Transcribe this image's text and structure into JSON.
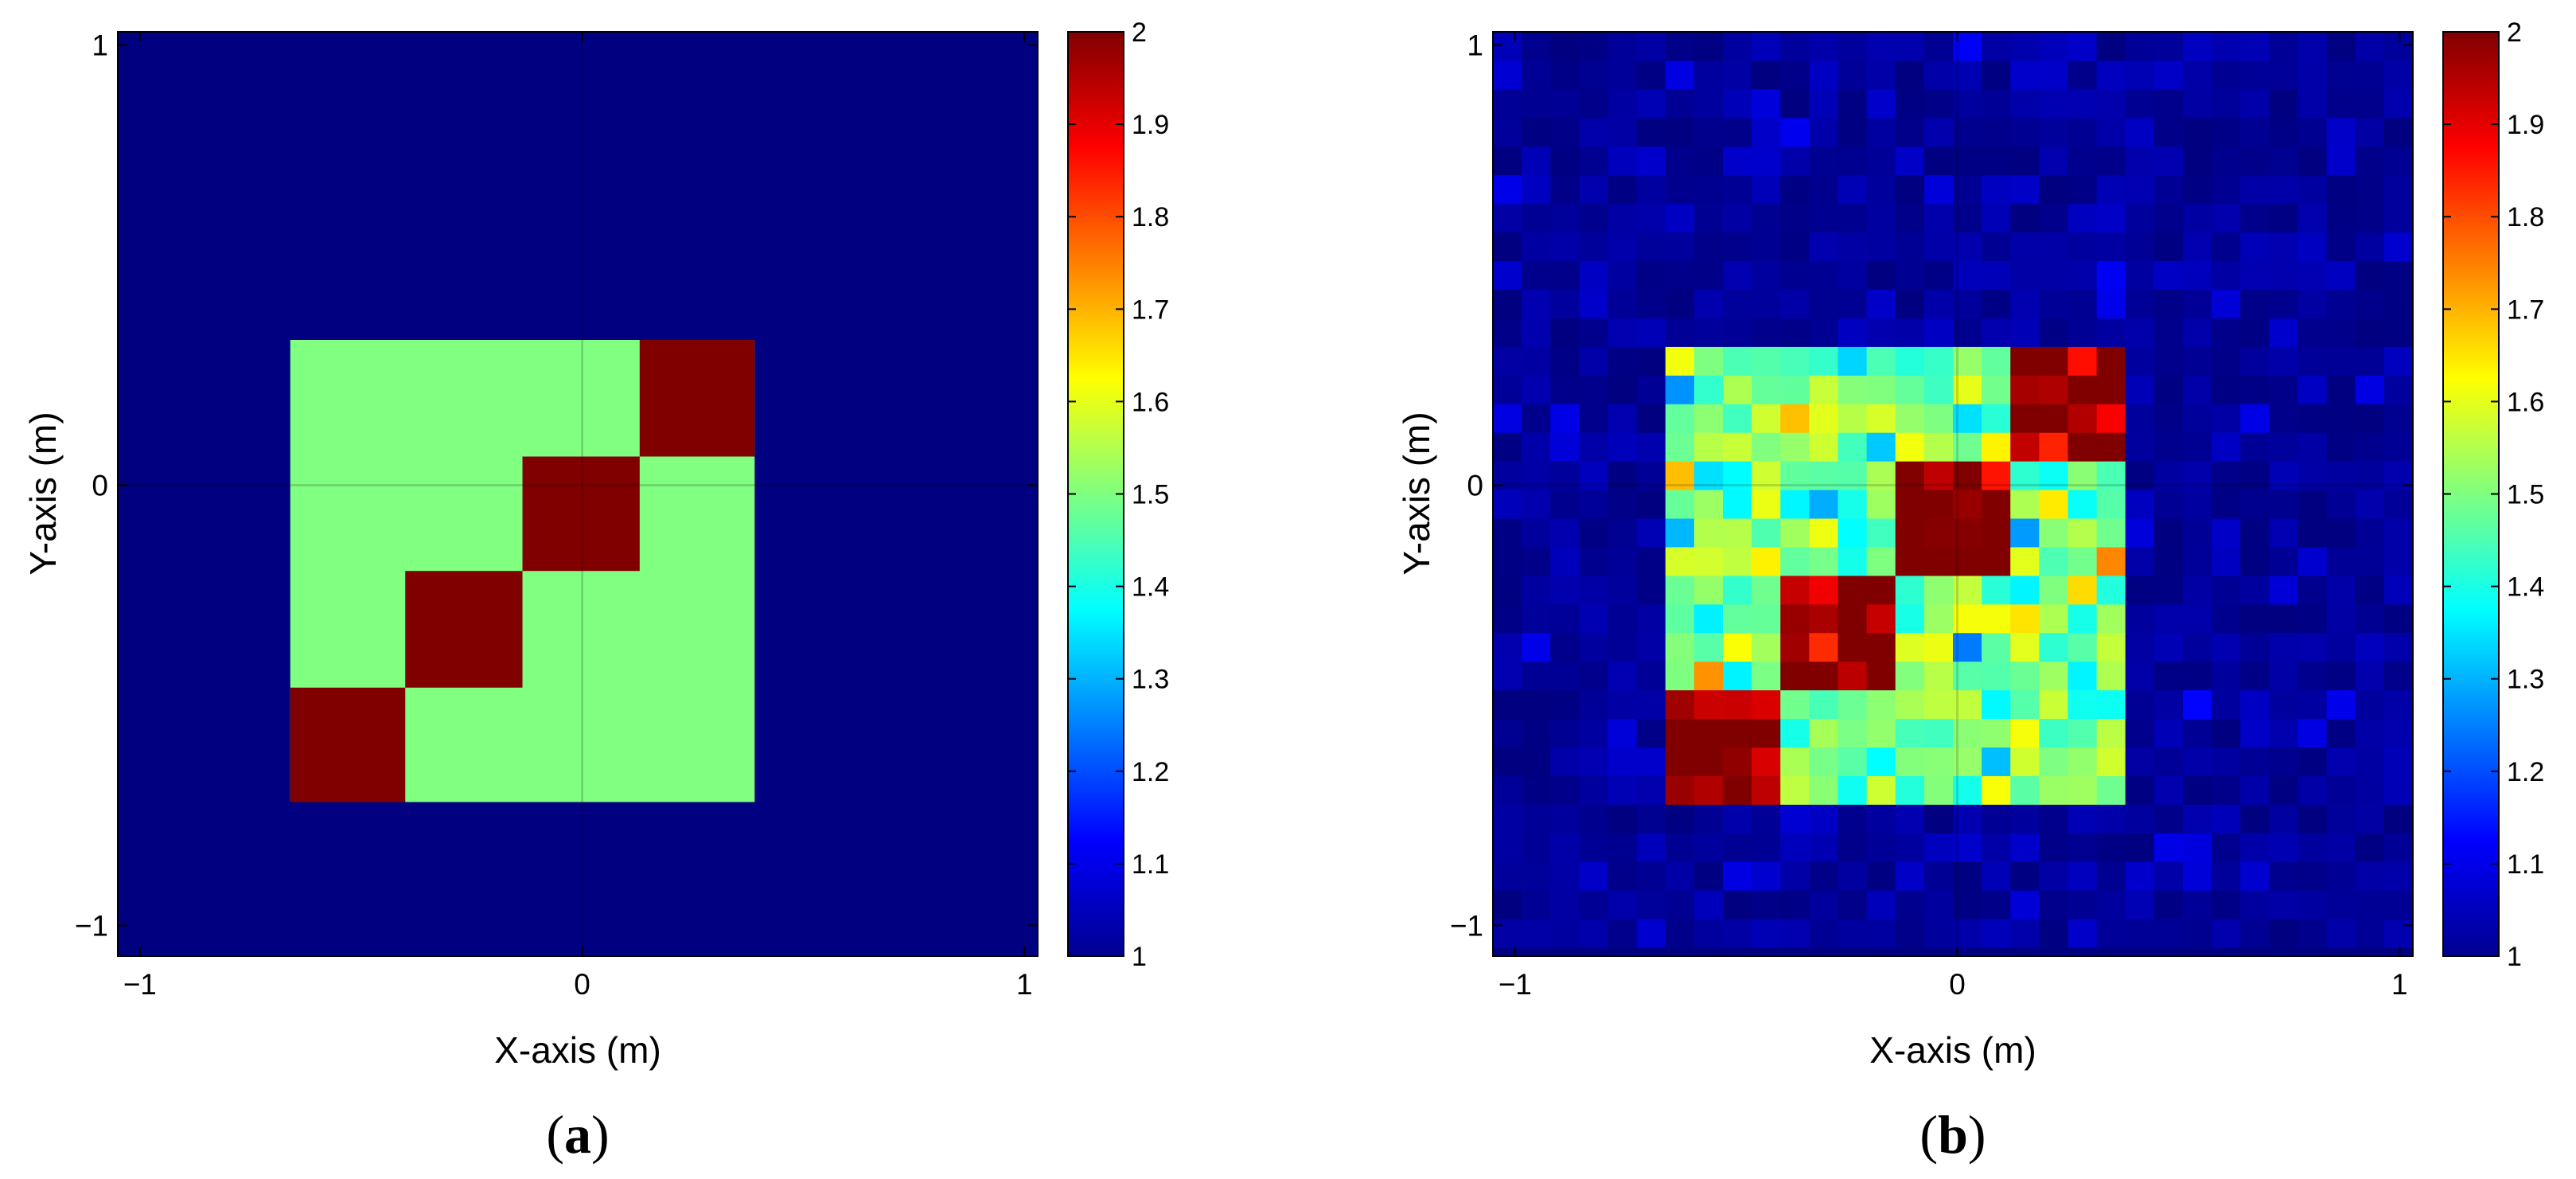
{
  "chart_data": [
    {
      "type": "heatmap",
      "panel_label": {
        "open": "(",
        "letter": "a",
        "close": ")"
      },
      "xlabel": "X-axis (m)",
      "ylabel": "Y-axis (m)",
      "xlim": [
        -1.05,
        1.03
      ],
      "ylim": [
        -1.07,
        1.03
      ],
      "x_ticks": [
        -1,
        0,
        1
      ],
      "y_ticks": [
        1,
        0,
        -1
      ],
      "x_tick_labels": [
        "−1",
        "0",
        "1"
      ],
      "y_tick_labels": [
        "1",
        "0",
        "−1"
      ],
      "grid": "center cross at 0",
      "colormap": "jet",
      "clim": [
        1,
        2
      ],
      "colorbar_ticks": [
        "2",
        "1.9",
        "1.8",
        "1.7",
        "1.6",
        "1.5",
        "1.4",
        "1.3",
        "1.2",
        "1.1",
        "1"
      ],
      "background_value": 1.0,
      "regions": [
        {
          "x0": -0.66,
          "x1": 0.39,
          "y0": -0.72,
          "y1": 0.33,
          "value": 1.5
        },
        {
          "x0": -0.66,
          "x1": -0.4,
          "y0": -0.72,
          "y1": -0.46,
          "value": 2.0
        },
        {
          "x0": -0.4,
          "x1": -0.135,
          "y0": -0.46,
          "y1": -0.195,
          "value": 2.0
        },
        {
          "x0": -0.135,
          "x1": 0.13,
          "y0": -0.195,
          "y1": 0.065,
          "value": 2.0
        },
        {
          "x0": 0.13,
          "x1": 0.39,
          "y0": 0.065,
          "y1": 0.33,
          "value": 2.0
        }
      ]
    },
    {
      "type": "heatmap",
      "panel_label": {
        "open": "(",
        "letter": "b",
        "close": ")"
      },
      "xlabel": "X-axis (m)",
      "ylabel": "Y-axis (m)",
      "xlim": [
        -1.05,
        1.03
      ],
      "ylim": [
        -1.07,
        1.03
      ],
      "x_ticks": [
        -1,
        0,
        1
      ],
      "y_ticks": [
        1,
        0,
        -1
      ],
      "x_tick_labels": [
        "−1",
        "0",
        "1"
      ],
      "y_tick_labels": [
        "1",
        "0",
        "−1"
      ],
      "grid": "center cross at 0",
      "colormap": "jet",
      "clim": [
        1,
        2
      ],
      "colorbar_ticks": [
        "2",
        "1.9",
        "1.8",
        "1.7",
        "1.6",
        "1.5",
        "1.4",
        "1.3",
        "1.2",
        "1.1",
        "1"
      ],
      "grid_cells": 32,
      "cell_range": [
        -1.05,
        1.03
      ],
      "reconstruction_of": "true object with noise",
      "background_value": 1.0,
      "noise_background": 0.04,
      "noise_object": 0.09,
      "regions": [
        {
          "x0": -0.66,
          "x1": 0.39,
          "y0": -0.72,
          "y1": 0.33,
          "value": 1.5
        },
        {
          "x0": -0.66,
          "x1": -0.4,
          "y0": -0.72,
          "y1": -0.46,
          "value": 2.0
        },
        {
          "x0": -0.4,
          "x1": -0.135,
          "y0": -0.46,
          "y1": -0.195,
          "value": 2.0
        },
        {
          "x0": -0.135,
          "x1": 0.13,
          "y0": -0.195,
          "y1": 0.065,
          "value": 2.0
        },
        {
          "x0": 0.13,
          "x1": 0.39,
          "y0": 0.065,
          "y1": 0.33,
          "value": 2.0
        }
      ]
    }
  ]
}
